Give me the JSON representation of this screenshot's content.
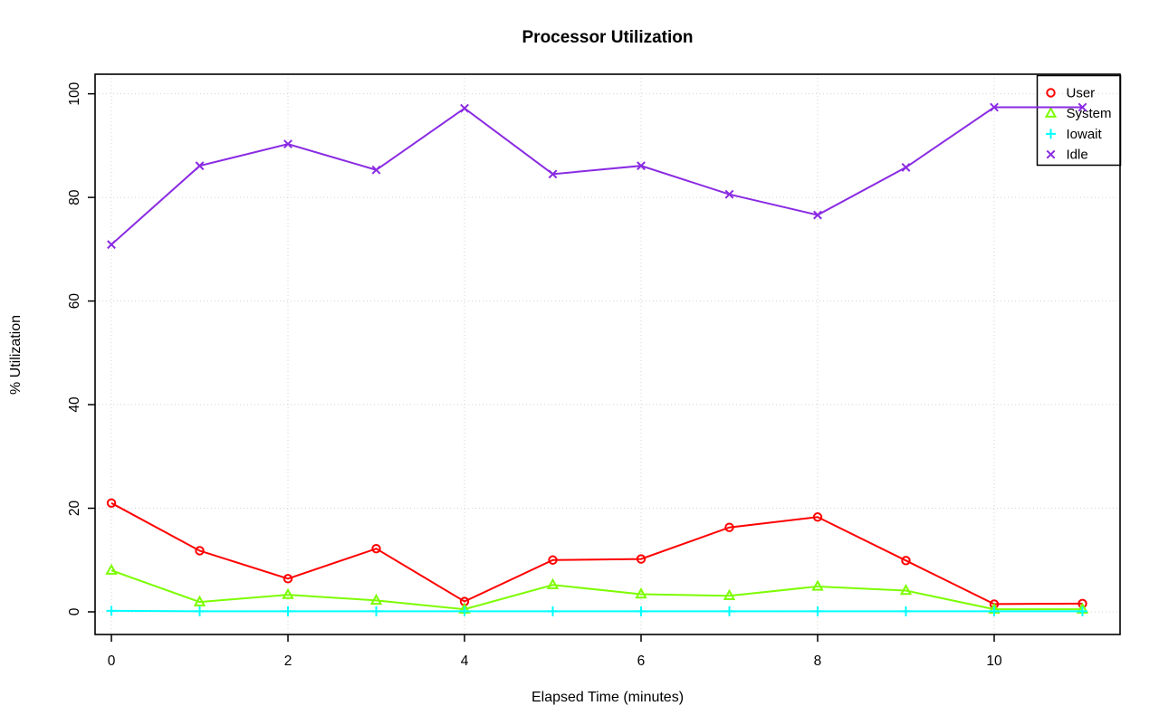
{
  "chart_data": {
    "type": "line",
    "title": "Processor Utilization",
    "xlabel": "Elapsed Time (minutes)",
    "ylabel": "% Utilization",
    "x": [
      0,
      1,
      2,
      3,
      4,
      5,
      6,
      7,
      8,
      9,
      10,
      11
    ],
    "series": [
      {
        "name": "User",
        "color": "#ff0000",
        "marker": "circle",
        "values": [
          21.0,
          11.8,
          6.4,
          12.2,
          2.0,
          10.0,
          10.2,
          16.3,
          18.3,
          9.9,
          1.5,
          1.6
        ]
      },
      {
        "name": "System",
        "color": "#7cfc00",
        "marker": "triangle",
        "values": [
          8.0,
          1.9,
          3.3,
          2.2,
          0.5,
          5.2,
          3.4,
          3.1,
          4.9,
          4.1,
          0.5,
          0.5
        ]
      },
      {
        "name": "Iowait",
        "color": "#00ffff",
        "marker": "plus",
        "values": [
          0.2,
          0.1,
          0.1,
          0.1,
          0.1,
          0.1,
          0.1,
          0.1,
          0.1,
          0.1,
          0.1,
          0.1
        ]
      },
      {
        "name": "Idle",
        "color": "#8a2be2",
        "marker": "x",
        "values": [
          70.9,
          86.1,
          90.3,
          85.3,
          97.2,
          84.5,
          86.1,
          80.6,
          76.6,
          85.8,
          97.4,
          97.4
        ]
      }
    ],
    "x_ticks": {
      "values": [
        0,
        2,
        4,
        6,
        8,
        10
      ],
      "labels": [
        "0",
        "2",
        "4",
        "6",
        "8",
        "10"
      ]
    },
    "y_ticks": {
      "values": [
        0,
        20,
        40,
        60,
        80,
        100
      ],
      "labels": [
        "0",
        "20",
        "40",
        "60",
        "80",
        "100"
      ]
    },
    "xlim": [
      -0.185,
      11.426
    ],
    "ylim": [
      -4.37,
      103.78
    ],
    "grid": {
      "on": true,
      "style": "dotted",
      "color": "#d3d3d3"
    },
    "legend": {
      "position": "top-right",
      "items": [
        "User",
        "System",
        "Iowait",
        "Idle"
      ]
    },
    "frame_color": "#000000",
    "background": "#ffffff"
  }
}
